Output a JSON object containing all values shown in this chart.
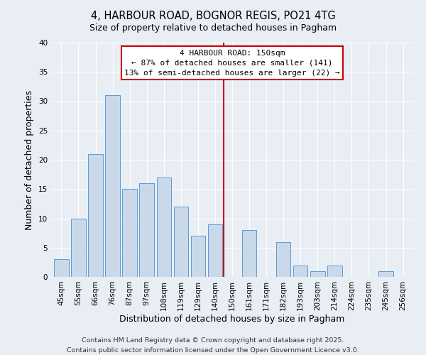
{
  "title": "4, HARBOUR ROAD, BOGNOR REGIS, PO21 4TG",
  "subtitle": "Size of property relative to detached houses in Pagham",
  "xlabel": "Distribution of detached houses by size in Pagham",
  "ylabel": "Number of detached properties",
  "bar_labels": [
    "45sqm",
    "55sqm",
    "66sqm",
    "76sqm",
    "87sqm",
    "97sqm",
    "108sqm",
    "119sqm",
    "129sqm",
    "140sqm",
    "150sqm",
    "161sqm",
    "171sqm",
    "182sqm",
    "193sqm",
    "203sqm",
    "214sqm",
    "224sqm",
    "235sqm",
    "245sqm",
    "256sqm"
  ],
  "bar_values": [
    3,
    10,
    21,
    31,
    15,
    16,
    17,
    12,
    7,
    9,
    0,
    8,
    0,
    6,
    2,
    1,
    2,
    0,
    0,
    1,
    0
  ],
  "bar_color": "#c9d9ea",
  "bar_edge_color": "#5b9bd5",
  "vline_x_data": 10.0,
  "vline_color": "#cc0000",
  "annotation_title": "4 HARBOUR ROAD: 150sqm",
  "annotation_line1": "← 87% of detached houses are smaller (141)",
  "annotation_line2": "13% of semi-detached houses are larger (22) →",
  "annotation_box_edge": "#cc0000",
  "ylim": [
    0,
    40
  ],
  "yticks": [
    0,
    5,
    10,
    15,
    20,
    25,
    30,
    35,
    40
  ],
  "footnote1": "Contains HM Land Registry data © Crown copyright and database right 2025.",
  "footnote2": "Contains public sector information licensed under the Open Government Licence v3.0.",
  "bg_color": "#e8eef4",
  "plot_bg_color": "#e8eef4",
  "grid_color": "#ffffff",
  "title_fontsize": 10.5,
  "subtitle_fontsize": 9,
  "axis_label_fontsize": 9,
  "tick_fontsize": 7.5,
  "footnote_fontsize": 6.8,
  "annotation_fontsize": 8.0
}
